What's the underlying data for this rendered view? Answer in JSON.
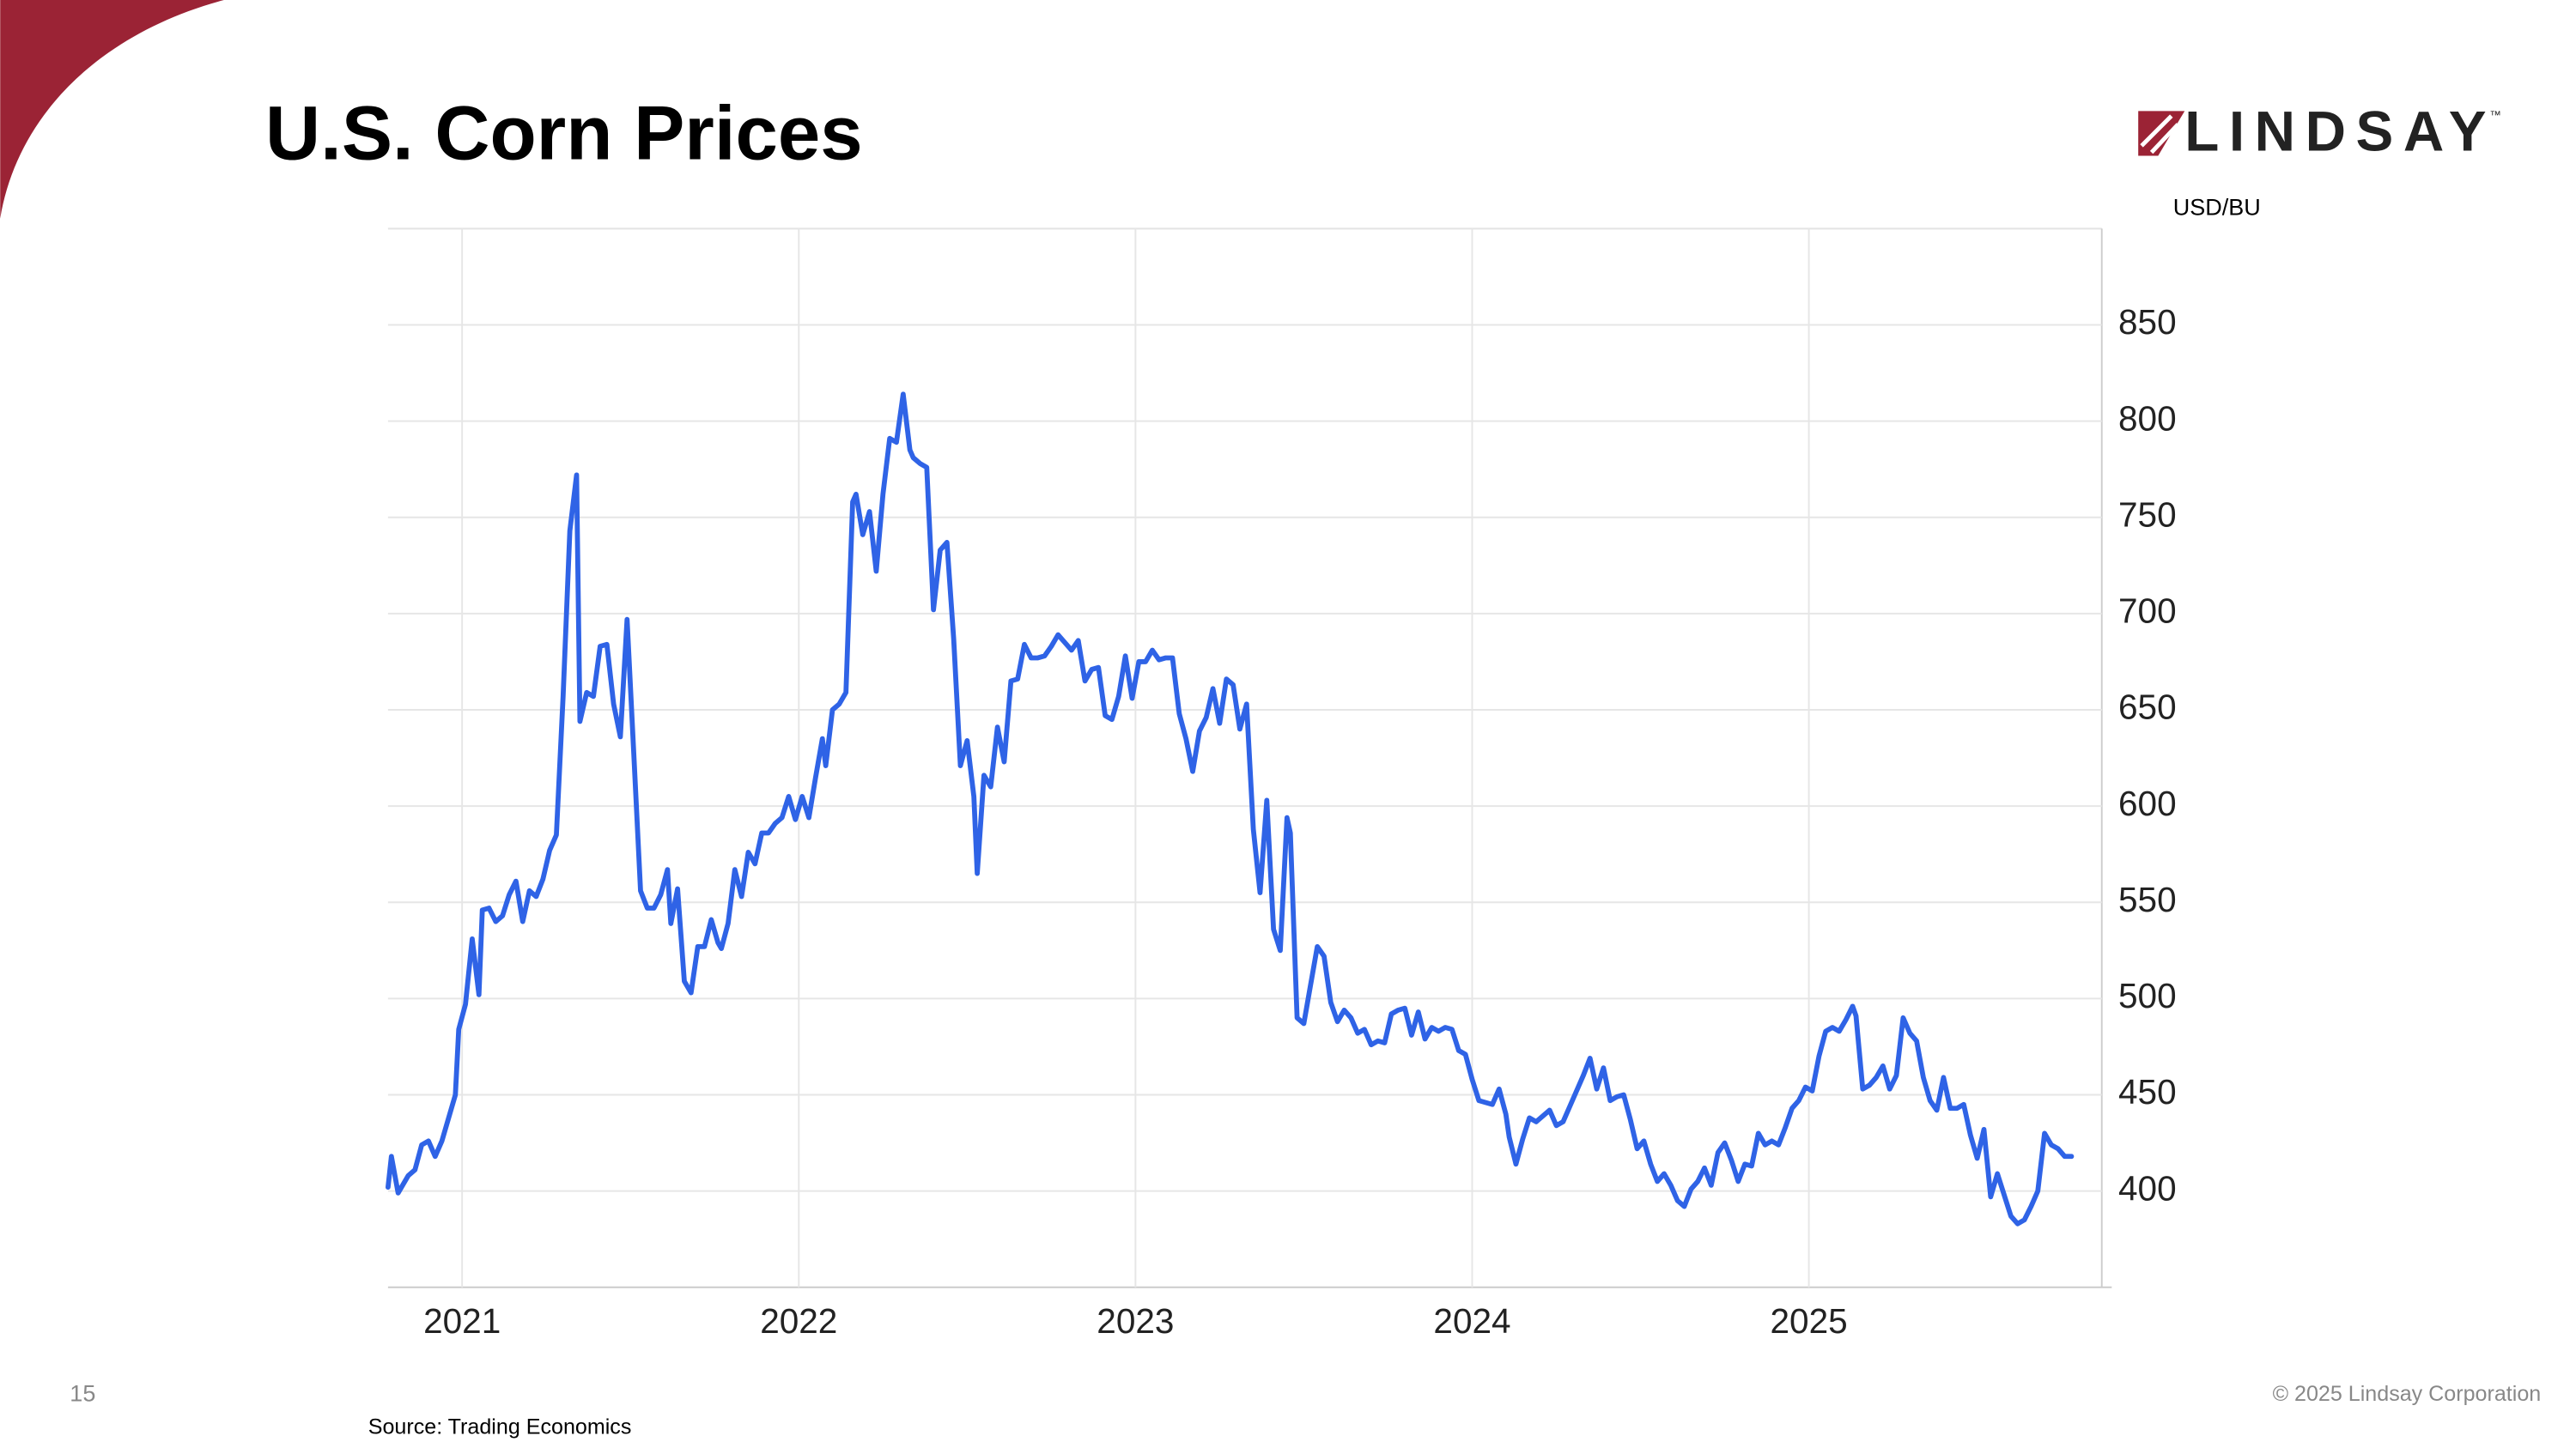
{
  "slide": {
    "logo": "LINDSAY",
    "trademark": "™",
    "page_number": "15",
    "copyright": "© 2025 Lindsay Corporation",
    "source": "Source: Trading Economics"
  },
  "chart_data": {
    "type": "line",
    "title": "U.S. Corn Prices",
    "y_label": "USD/BU",
    "color": "#2f63e6",
    "grid": true,
    "xlim": [
      2020.78,
      2025.87
    ],
    "xticks": [
      2021,
      2022,
      2023,
      2024,
      2025
    ],
    "ylim": [
      350,
      900
    ],
    "yticks": [
      400,
      450,
      500,
      550,
      600,
      650,
      700,
      750,
      800,
      850
    ],
    "x": [
      2020.78,
      2020.79,
      2020.81,
      2020.84,
      2020.86,
      2020.88,
      2020.9,
      2020.92,
      2020.94,
      2020.98,
      2020.99,
      2021.01,
      2021.03,
      2021.05,
      2021.06,
      2021.08,
      2021.1,
      2021.12,
      2021.14,
      2021.16,
      2021.18,
      2021.2,
      2021.22,
      2021.24,
      2021.26,
      2021.28,
      2021.3,
      2021.32,
      2021.34,
      2021.35,
      2021.37,
      2021.39,
      2021.41,
      2021.43,
      2021.45,
      2021.47,
      2021.49,
      2021.51,
      2021.53,
      2021.55,
      2021.57,
      2021.59,
      2021.61,
      2021.62,
      2021.64,
      2021.66,
      2021.68,
      2021.7,
      2021.72,
      2021.74,
      2021.76,
      2021.77,
      2021.79,
      2021.81,
      2021.83,
      2021.85,
      2021.87,
      2021.89,
      2021.91,
      2021.93,
      2021.95,
      2021.97,
      2021.99,
      2022.01,
      2022.03,
      2022.05,
      2022.07,
      2022.08,
      2022.1,
      2022.12,
      2022.14,
      2022.16,
      2022.17,
      2022.19,
      2022.21,
      2022.23,
      2022.25,
      2022.27,
      2022.29,
      2022.31,
      2022.33,
      2022.34,
      2022.36,
      2022.38,
      2022.4,
      2022.42,
      2022.44,
      2022.46,
      2022.48,
      2022.5,
      2022.52,
      2022.53,
      2022.55,
      2022.57,
      2022.59,
      2022.61,
      2022.63,
      2022.65,
      2022.67,
      2022.69,
      2022.71,
      2022.73,
      2022.75,
      2022.77,
      2022.79,
      2022.81,
      2022.83,
      2022.85,
      2022.87,
      2022.89,
      2022.91,
      2022.93,
      2022.95,
      2022.97,
      2022.99,
      2023.01,
      2023.03,
      2023.05,
      2023.07,
      2023.09,
      2023.11,
      2023.13,
      2023.15,
      2023.17,
      2023.19,
      2023.21,
      2023.23,
      2023.25,
      2023.27,
      2023.29,
      2023.31,
      2023.33,
      2023.35,
      2023.37,
      2023.39,
      2023.41,
      2023.43,
      2023.45,
      2023.46,
      2023.48,
      2023.5,
      2023.52,
      2023.54,
      2023.56,
      2023.58,
      2023.6,
      2023.62,
      2023.64,
      2023.66,
      2023.68,
      2023.7,
      2023.72,
      2023.74,
      2023.76,
      2023.78,
      2023.8,
      2023.82,
      2023.84,
      2023.86,
      2023.88,
      2023.9,
      2023.92,
      2023.94,
      2023.96,
      2023.98,
      2024.0,
      2024.02,
      2024.04,
      2024.06,
      2024.08,
      2024.1,
      2024.11,
      2024.13,
      2024.15,
      2024.17,
      2024.19,
      2024.21,
      2024.23,
      2024.25,
      2024.27,
      2024.29,
      2024.31,
      2024.33,
      2024.35,
      2024.37,
      2024.39,
      2024.41,
      2024.43,
      2024.45,
      2024.47,
      2024.49,
      2024.51,
      2024.53,
      2024.55,
      2024.57,
      2024.59,
      2024.61,
      2024.63,
      2024.65,
      2024.67,
      2024.69,
      2024.71,
      2024.73,
      2024.75,
      2024.77,
      2024.79,
      2024.81,
      2024.83,
      2024.85,
      2024.87,
      2024.89,
      2024.91,
      2024.93,
      2024.95,
      2024.97,
      2024.99,
      2025.01,
      2025.03,
      2025.05,
      2025.07,
      2025.09,
      2025.11,
      2025.13,
      2025.14,
      2025.16,
      2025.18,
      2025.2,
      2025.22,
      2025.24,
      2025.26,
      2025.28,
      2025.3,
      2025.32,
      2025.34,
      2025.36,
      2025.38,
      2025.4,
      2025.42,
      2025.44,
      2025.46,
      2025.48,
      2025.5,
      2025.52,
      2025.54,
      2025.56,
      2025.58,
      2025.6,
      2025.62,
      2025.64,
      2025.66,
      2025.68,
      2025.7,
      2025.72,
      2025.74,
      2025.76,
      2025.78
    ],
    "values": [
      402,
      418,
      399,
      408,
      411,
      424,
      426,
      418,
      426,
      450,
      484,
      497,
      531,
      502,
      546,
      547,
      540,
      543,
      554,
      561,
      540,
      556,
      553,
      562,
      577,
      585,
      657,
      743,
      772,
      644,
      659,
      657,
      683,
      684,
      653,
      636,
      697,
      627,
      556,
      547,
      547,
      554,
      567,
      539,
      557,
      509,
      503,
      527,
      527,
      541,
      529,
      526,
      539,
      567,
      553,
      576,
      570,
      586,
      586,
      591,
      594,
      605,
      593,
      605,
      594,
      615,
      635,
      621,
      650,
      653,
      659,
      758,
      762,
      741,
      753,
      722,
      762,
      791,
      789,
      814,
      785,
      781,
      778,
      776,
      702,
      733,
      737,
      687,
      621,
      634,
      605,
      565,
      616,
      610,
      641,
      623,
      665,
      666,
      684,
      677,
      677,
      678,
      683,
      689,
      685,
      681,
      686,
      665,
      671,
      672,
      647,
      645,
      657,
      678,
      656,
      675,
      675,
      681,
      676,
      677,
      677,
      648,
      635,
      618,
      639,
      646,
      661,
      643,
      666,
      663,
      640,
      653,
      588,
      555,
      603,
      536,
      525,
      594,
      586,
      490,
      487,
      507,
      527,
      522,
      498,
      488,
      494,
      490,
      482,
      484,
      476,
      478,
      477,
      492,
      494,
      495,
      481,
      493,
      479,
      485,
      483,
      485,
      484,
      473,
      471,
      458,
      447,
      446,
      445,
      453,
      440,
      428,
      414,
      427,
      438,
      436,
      439,
      442,
      434,
      436,
      444,
      452,
      460,
      469,
      453,
      464,
      447,
      449,
      450,
      437,
      422,
      426,
      414,
      405,
      409,
      403,
      395,
      392,
      401,
      405,
      412,
      403,
      420,
      425,
      416,
      405,
      414,
      413,
      430,
      424,
      426,
      424,
      433,
      443,
      447,
      454,
      452,
      470,
      483,
      485,
      483,
      489,
      496,
      491,
      453,
      455,
      459,
      465,
      453,
      460,
      490,
      482,
      478,
      459,
      447,
      442,
      459,
      443,
      443,
      445,
      429,
      417,
      432,
      397,
      409,
      398,
      387,
      383,
      385,
      392,
      400,
      430,
      424,
      422,
      418,
      418
    ]
  }
}
